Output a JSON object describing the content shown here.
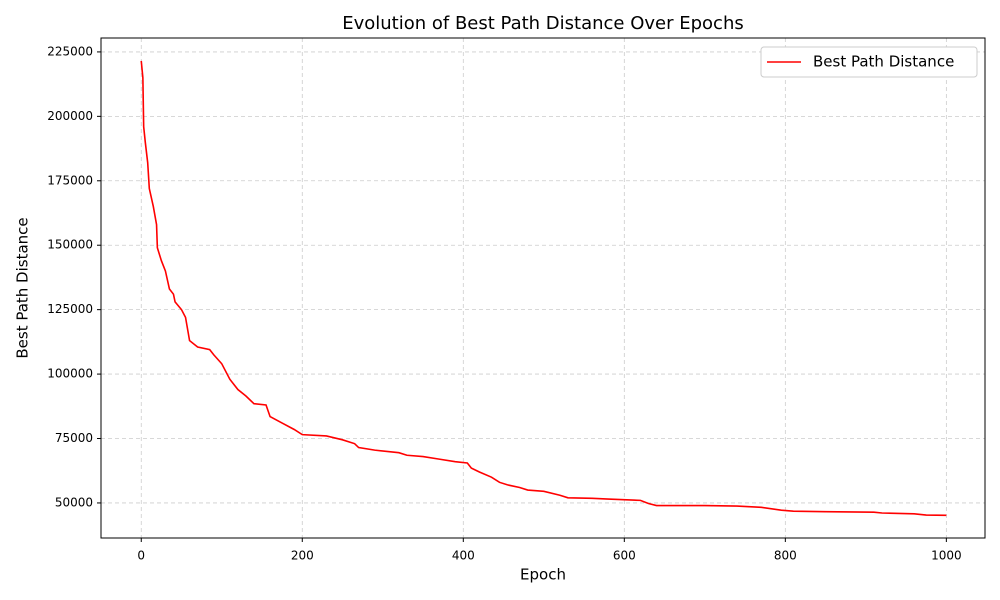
{
  "chart_data": {
    "type": "line",
    "title": "Evolution of Best Path Distance Over Epochs",
    "x_label": "Epoch",
    "y_label": "Best Path Distance",
    "x": [
      0,
      2,
      3,
      5,
      8,
      10,
      15,
      19,
      20,
      25,
      30,
      35,
      40,
      42,
      50,
      55,
      60,
      70,
      85,
      90,
      100,
      110,
      120,
      130,
      140,
      155,
      160,
      175,
      190,
      200,
      230,
      250,
      265,
      270,
      290,
      320,
      330,
      350,
      370,
      390,
      405,
      410,
      420,
      435,
      445,
      455,
      470,
      480,
      500,
      520,
      530,
      560,
      580,
      620,
      630,
      640,
      700,
      740,
      770,
      795,
      810,
      850,
      910,
      920,
      960,
      975,
      1000
    ],
    "series": [
      {
        "name": "Best Path Distance",
        "color": "#ff0000",
        "values": [
          221500,
          215000,
          196000,
          190000,
          182000,
          172000,
          165000,
          158000,
          149000,
          144000,
          140000,
          133000,
          131000,
          128000,
          125000,
          122000,
          113000,
          110500,
          109500,
          107500,
          104000,
          98000,
          94000,
          91500,
          88500,
          88000,
          83500,
          81000,
          78500,
          76500,
          76000,
          74500,
          73000,
          71500,
          70500,
          69500,
          68500,
          68000,
          67000,
          66000,
          65500,
          63500,
          62000,
          60000,
          58000,
          57000,
          56000,
          55000,
          54500,
          53000,
          52000,
          51800,
          51500,
          51000,
          49800,
          49000,
          49000,
          48800,
          48300,
          47200,
          46800,
          46600,
          46400,
          46100,
          45800,
          45300,
          45200
        ]
      }
    ],
    "xlim": [
      -50,
      1048
    ],
    "ylim": [
      36400,
      230400
    ],
    "xticks": [
      0,
      200,
      400,
      600,
      800,
      1000
    ],
    "yticks": [
      50000,
      75000,
      100000,
      125000,
      150000,
      175000,
      200000,
      225000
    ],
    "grid": true,
    "legend": "upper right"
  }
}
